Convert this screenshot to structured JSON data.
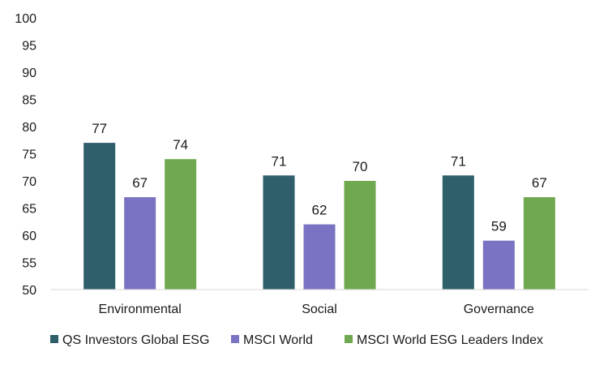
{
  "chart_data": {
    "type": "bar",
    "categories": [
      "Environmental",
      "Social",
      "Governance"
    ],
    "series": [
      {
        "name": "QS Investors Global ESG",
        "color": "#2e5f6b",
        "values": [
          77,
          71,
          71
        ]
      },
      {
        "name": "MSCI World",
        "color": "#7a72c2",
        "values": [
          67,
          62,
          59
        ]
      },
      {
        "name": "MSCI World ESG Leaders Index",
        "color": "#6fa84f",
        "values": [
          74,
          70,
          67
        ]
      }
    ],
    "data_labels": [
      [
        "77",
        "71",
        "71"
      ],
      [
        "67",
        "62",
        "59"
      ],
      [
        "74",
        "70",
        "67"
      ]
    ],
    "yticks": [
      50,
      55,
      60,
      65,
      70,
      75,
      80,
      85,
      90,
      95,
      100
    ],
    "ylim": [
      50,
      100
    ],
    "grid": false,
    "legend_position": "bottom",
    "title": "",
    "xlabel": "",
    "ylabel": ""
  }
}
